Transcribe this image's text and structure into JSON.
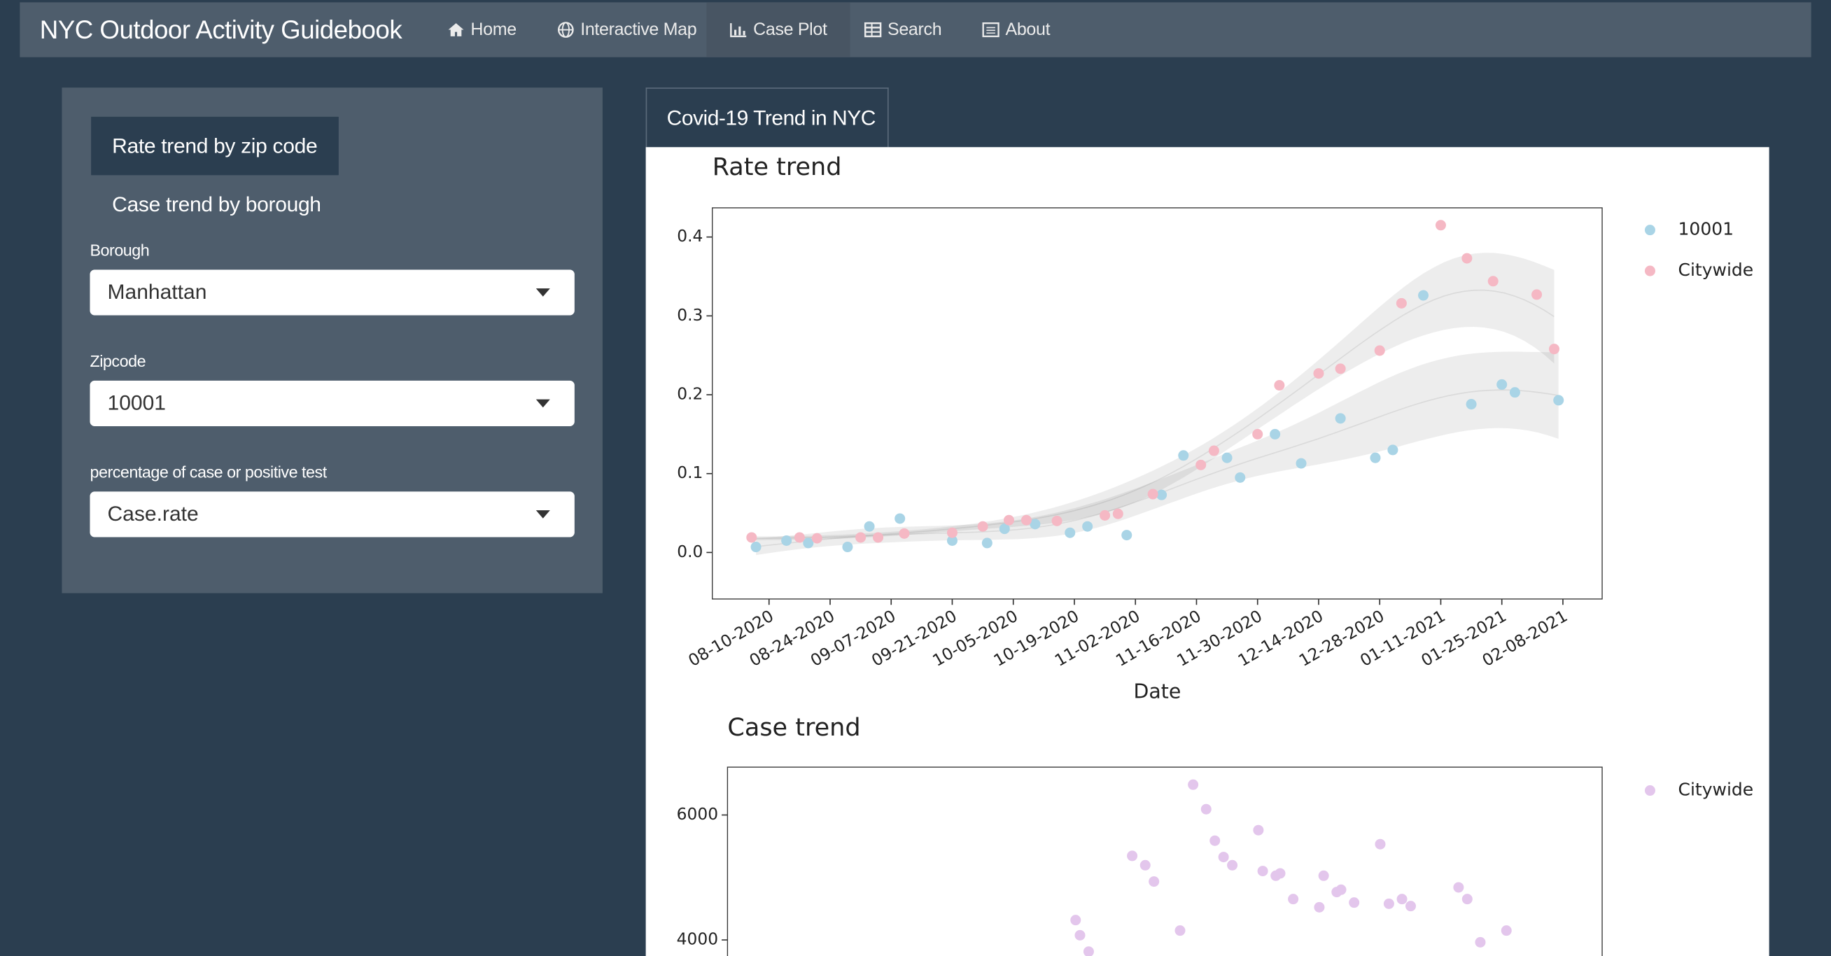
{
  "navbar": {
    "brand": "NYC Outdoor Activity Guidebook",
    "items": [
      "Home",
      "Interactive Map",
      "Case Plot",
      "Search",
      "About"
    ]
  },
  "sidebar": {
    "pills": [
      "Rate trend by zip code",
      "Case trend by borough"
    ],
    "fields": [
      {
        "label": "Borough",
        "value": "Manhattan"
      },
      {
        "label": "Zipcode",
        "value": "10001"
      },
      {
        "label": "percentage of case or positive test",
        "value": "Case.rate"
      }
    ]
  },
  "tabs": [
    "Covid-19 Trend in NYC"
  ],
  "chart_data": [
    {
      "type": "scatter",
      "title": "Rate trend",
      "x_label": "Date",
      "smooth": true,
      "grid": false,
      "xlim": [
        "2020-07-28",
        "2021-02-17"
      ],
      "xticks": [
        {
          "value": "2020-08-10",
          "label": "08-10-2020"
        },
        {
          "value": "2020-08-24",
          "label": "08-24-2020"
        },
        {
          "value": "2020-09-07",
          "label": "09-07-2020"
        },
        {
          "value": "2020-09-21",
          "label": "09-21-2020"
        },
        {
          "value": "2020-10-05",
          "label": "10-05-2020"
        },
        {
          "value": "2020-10-19",
          "label": "10-19-2020"
        },
        {
          "value": "2020-11-02",
          "label": "11-02-2020"
        },
        {
          "value": "2020-11-16",
          "label": "11-16-2020"
        },
        {
          "value": "2020-11-30",
          "label": "11-30-2020"
        },
        {
          "value": "2020-12-14",
          "label": "12-14-2020"
        },
        {
          "value": "2020-12-28",
          "label": "12-28-2020"
        },
        {
          "value": "2021-01-11",
          "label": "01-11-2021"
        },
        {
          "value": "2021-01-25",
          "label": "01-25-2021"
        },
        {
          "value": "2021-02-08",
          "label": "02-08-2021"
        }
      ],
      "ylim": [
        -0.059,
        0.437
      ],
      "yticks": [
        {
          "value": 0,
          "label": "0.0"
        },
        0.1,
        0.2,
        0.3,
        0.4
      ],
      "series": [
        {
          "name": "10001",
          "color": "#a9d4e6",
          "x": [
            "2020-08-07",
            "2020-08-14",
            "2020-08-19",
            "2020-08-28",
            "2020-09-02",
            "2020-09-09",
            "2020-09-21",
            "2020-09-29",
            "2020-10-03",
            "2020-10-10",
            "2020-10-18",
            "2020-10-22",
            "2020-10-31",
            "2020-11-08",
            "2020-11-13",
            "2020-11-23",
            "2020-11-26",
            "2020-12-04",
            "2020-12-10",
            "2020-12-19",
            "2020-12-27",
            "2020-12-31",
            "2021-01-07",
            "2021-01-18",
            "2021-01-25",
            "2021-01-28",
            "2021-02-07"
          ],
          "values": [
            0.007,
            0.015,
            0.012,
            0.007,
            0.033,
            0.043,
            0.015,
            0.012,
            0.03,
            0.036,
            0.025,
            0.033,
            0.022,
            0.073,
            0.123,
            0.12,
            0.095,
            0.15,
            0.113,
            0.17,
            0.12,
            0.13,
            0.326,
            0.188,
            0.213,
            0.203,
            0.193
          ]
        },
        {
          "name": "Citywide",
          "color": "#f5b8c4",
          "x": [
            "2020-08-06",
            "2020-08-17",
            "2020-08-21",
            "2020-08-31",
            "2020-09-04",
            "2020-09-10",
            "2020-09-21",
            "2020-09-28",
            "2020-10-04",
            "2020-10-08",
            "2020-10-15",
            "2020-10-26",
            "2020-10-29",
            "2020-11-06",
            "2020-11-17",
            "2020-11-20",
            "2020-11-30",
            "2020-12-05",
            "2020-12-14",
            "2020-12-19",
            "2020-12-28",
            "2021-01-02",
            "2021-01-11",
            "2021-01-17",
            "2021-01-23",
            "2021-02-02",
            "2021-02-06"
          ],
          "values": [
            0.019,
            0.019,
            0.018,
            0.019,
            0.019,
            0.024,
            0.025,
            0.033,
            0.041,
            0.041,
            0.04,
            0.047,
            0.049,
            0.074,
            0.111,
            0.129,
            0.15,
            0.212,
            0.227,
            0.233,
            0.256,
            0.316,
            0.415,
            0.373,
            0.344,
            0.327,
            0.258
          ]
        }
      ]
    },
    {
      "type": "scatter",
      "title": "Case trend",
      "smooth": false,
      "grid": false,
      "xlim": [
        "2020-07-31",
        "2021-02-17"
      ],
      "ylim": [
        3738,
        6766
      ],
      "yticks": [
        4000,
        6000
      ],
      "series": [
        {
          "name": "Citywide",
          "color": "#e3c6ec",
          "x": [
            "2020-10-19",
            "2020-10-20",
            "2020-10-22",
            "2020-11-01",
            "2020-11-04",
            "2020-11-06",
            "2020-11-12",
            "2020-11-15",
            "2020-11-18",
            "2020-11-20",
            "2020-11-22",
            "2020-11-24",
            "2020-11-30",
            "2020-12-01",
            "2020-12-04",
            "2020-12-05",
            "2020-12-08",
            "2020-12-14",
            "2020-12-15",
            "2020-12-18",
            "2020-12-19",
            "2020-12-22",
            "2020-12-28",
            "2020-12-30",
            "2021-01-02",
            "2021-01-04",
            "2021-01-15",
            "2021-01-17",
            "2021-01-20",
            "2021-01-26"
          ],
          "values": [
            4318,
            4075,
            3813,
            5346,
            5196,
            4935,
            4150,
            6486,
            6093,
            5589,
            5327,
            5196,
            5757,
            5103,
            5028,
            5065,
            4654,
            4523,
            5028,
            4766,
            4804,
            4598,
            5533,
            4579,
            4654,
            4542,
            4841,
            4654,
            3963,
            4150
          ]
        }
      ]
    }
  ]
}
